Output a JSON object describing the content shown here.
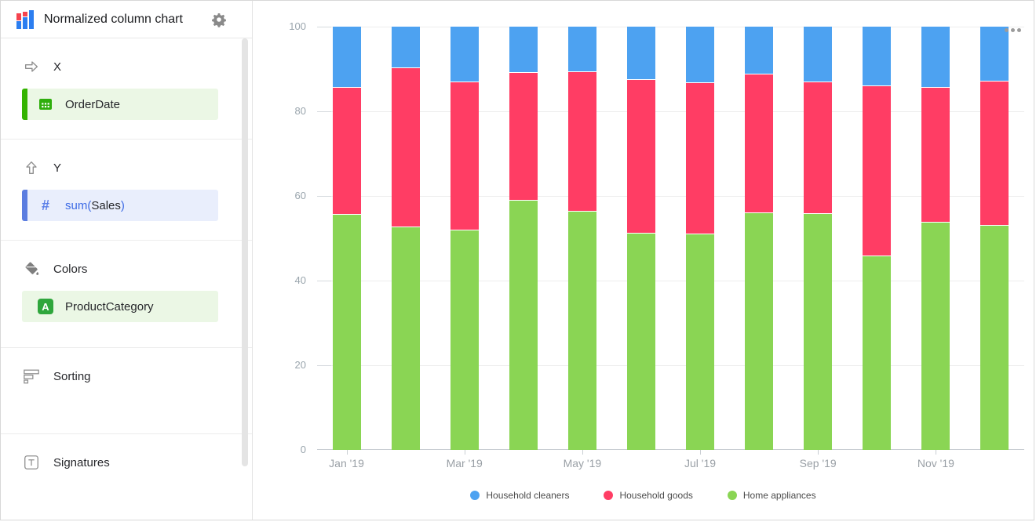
{
  "header": {
    "title": "Normalized column chart",
    "chart_type_icon": "stacked-column-chart-icon",
    "settings_icon": "gear-icon"
  },
  "sidebar": {
    "x_section": {
      "label": "X",
      "icon": "arrow-right-icon",
      "field": "OrderDate",
      "field_icon": "calendar-icon",
      "accent_color": "#33b300",
      "field_bg": "#ebf7e5"
    },
    "y_section": {
      "label": "Y",
      "icon": "arrow-up-icon",
      "field_prefix": "sum(",
      "field_name": "Sales",
      "field_suffix": ")",
      "field_icon": "hash-icon",
      "accent_color": "#5b7de0",
      "field_bg": "#e9eefc"
    },
    "colors_section": {
      "label": "Colors",
      "icon": "paint-bucket-icon",
      "field": "ProductCategory",
      "field_icon": "letter-a-icon",
      "field_bg": "#ebf7e5"
    },
    "sorting_section": {
      "label": "Sorting",
      "icon": "sorting-bars-icon"
    },
    "signatures_section": {
      "label": "Signatures",
      "icon": "text-label-icon"
    }
  },
  "chart_menu": "more-options-dots",
  "chart_data": {
    "type": "bar",
    "variant": "normalized-stacked-column",
    "title": "",
    "xlabel": "",
    "ylabel": "",
    "ylim": [
      0,
      100
    ],
    "yticks": [
      0,
      20,
      40,
      60,
      80,
      100
    ],
    "grid": true,
    "legend_position": "bottom",
    "categories": [
      "Jan '19",
      "Feb '19",
      "Mar '19",
      "Apr '19",
      "May '19",
      "Jun '19",
      "Jul '19",
      "Aug '19",
      "Sep '19",
      "Oct '19",
      "Nov '19",
      "Dec '19"
    ],
    "x_axis_labels_shown": [
      "Jan '19",
      "Mar '19",
      "May '19",
      "Jul '19",
      "Sep '19",
      "Nov '19"
    ],
    "series": [
      {
        "name": "Home appliances",
        "color": "#8ad554",
        "values": [
          55.7,
          52.7,
          52.0,
          59.1,
          56.5,
          51.3,
          51.2,
          56.1,
          56.0,
          46.0,
          53.8,
          53.2
        ]
      },
      {
        "name": "Household goods",
        "color": "#ff3d64",
        "values": [
          30.0,
          37.7,
          35.0,
          30.1,
          32.9,
          36.3,
          35.6,
          32.7,
          31.0,
          40.2,
          31.9,
          34.1
        ]
      },
      {
        "name": "Household cleaners",
        "color": "#4da2f1",
        "values": [
          14.3,
          9.6,
          13.0,
          10.8,
          10.6,
          12.4,
          13.2,
          11.2,
          13.0,
          13.8,
          14.3,
          12.7
        ]
      }
    ],
    "legend": [
      {
        "name": "Household cleaners",
        "color": "#4da2f1"
      },
      {
        "name": "Household goods",
        "color": "#ff3d64"
      },
      {
        "name": "Home appliances",
        "color": "#8ad554"
      }
    ]
  }
}
